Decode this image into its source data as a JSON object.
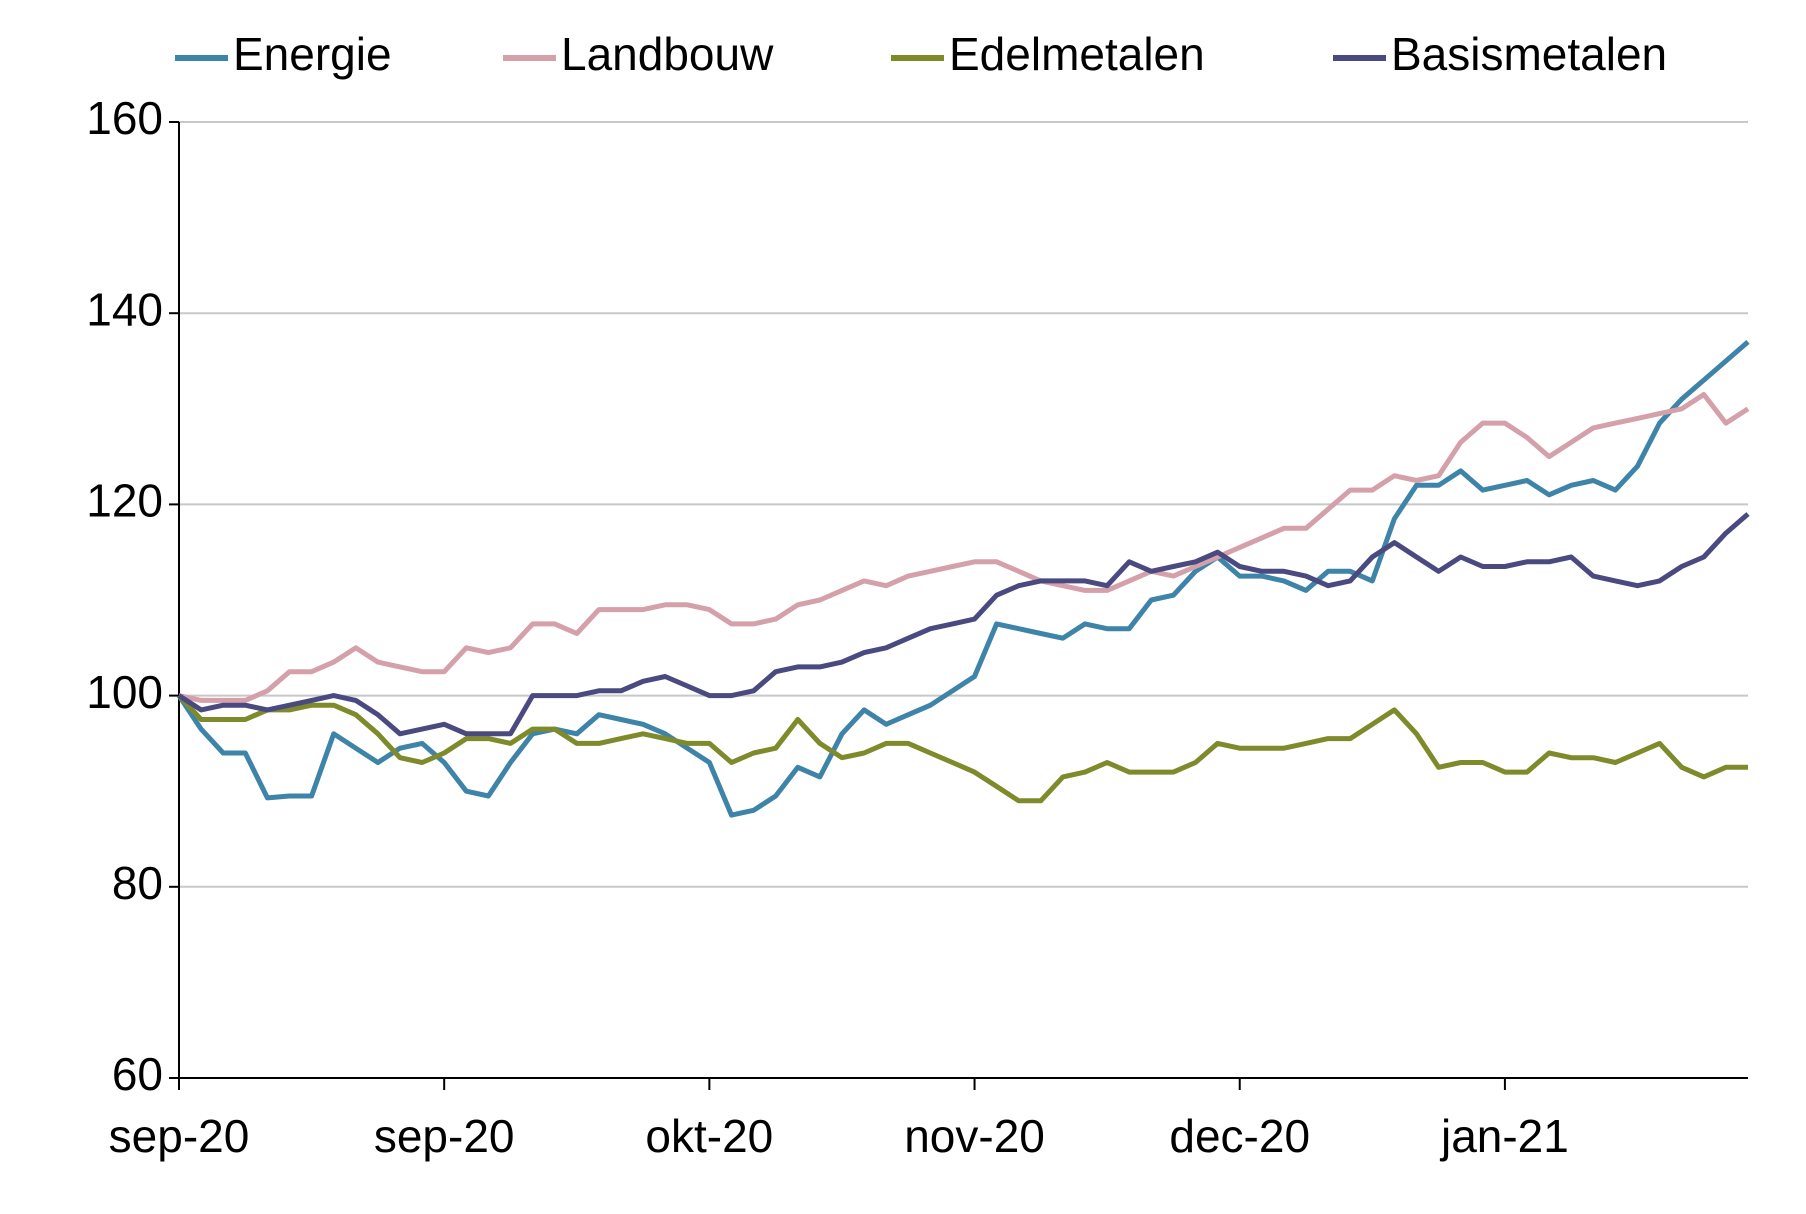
{
  "chart_data": {
    "type": "line",
    "categories": [
      "sep-20",
      null,
      null,
      null,
      null,
      null,
      null,
      null,
      null,
      null,
      null,
      null,
      "sep-20",
      null,
      null,
      null,
      null,
      null,
      null,
      null,
      null,
      null,
      null,
      null,
      "okt-20",
      null,
      null,
      null,
      null,
      null,
      null,
      null,
      null,
      null,
      null,
      null,
      "nov-20",
      null,
      null,
      null,
      null,
      null,
      null,
      null,
      null,
      null,
      null,
      null,
      "dec-20",
      null,
      null,
      null,
      null,
      null,
      null,
      null,
      null,
      null,
      null,
      null,
      "jan-21",
      null,
      null,
      null,
      null,
      null,
      null,
      null,
      null,
      null,
      null,
      null
    ],
    "series": [
      {
        "name": "Energie",
        "color": "#3d84a8",
        "values": [
          100,
          96.5,
          94,
          94,
          89.3,
          89.5,
          89.5,
          96,
          94.5,
          93,
          94.5,
          95,
          93,
          90,
          89.5,
          93,
          96,
          96.5,
          96,
          98,
          97.5,
          97,
          96,
          94.5,
          93,
          87.5,
          88,
          89.5,
          92.5,
          91.5,
          96,
          98.5,
          97,
          98,
          99,
          100.5,
          102,
          107.5,
          107,
          106.5,
          106,
          107.5,
          107,
          107,
          110,
          110.5,
          113,
          114.5,
          112.5,
          112.5,
          112,
          111,
          113,
          113,
          112,
          118.5,
          122,
          122,
          123.5,
          121.5,
          122,
          122.5,
          121,
          122,
          122.5,
          121.5,
          124,
          128.5,
          131,
          133,
          135,
          137
        ]
      },
      {
        "name": "Landbouw",
        "color": "#d4a0aa",
        "values": [
          100,
          99.5,
          99.5,
          99.5,
          100.5,
          102.5,
          102.5,
          103.5,
          105,
          103.5,
          103,
          102.5,
          102.5,
          105,
          104.5,
          105,
          107.5,
          107.5,
          106.5,
          109,
          109,
          109,
          109.5,
          109.5,
          109,
          107.5,
          107.5,
          108,
          109.5,
          110,
          111,
          112,
          111.5,
          112.5,
          113,
          113.5,
          114,
          114,
          113,
          112,
          111.5,
          111,
          111,
          112,
          113,
          112.5,
          113.5,
          114.5,
          115.5,
          116.5,
          117.5,
          117.5,
          119.5,
          121.5,
          121.5,
          123,
          122.5,
          123,
          126.5,
          128.5,
          128.5,
          127,
          125,
          126.5,
          128,
          128.5,
          129,
          129.5,
          130,
          131.5,
          128.5,
          130
        ]
      },
      {
        "name": "Edelmetalen",
        "color": "#7f8a2a",
        "values": [
          100,
          97.5,
          97.5,
          97.5,
          98.5,
          98.5,
          99,
          99,
          98,
          96,
          93.5,
          93,
          94,
          95.5,
          95.5,
          95,
          96.5,
          96.5,
          95,
          95,
          95.5,
          96,
          95.5,
          95,
          95,
          93,
          94,
          94.5,
          97.5,
          95,
          93.5,
          94,
          95,
          95,
          94,
          93,
          92,
          90.5,
          89,
          89,
          91.5,
          92,
          93,
          92,
          92,
          92,
          93,
          95,
          94.5,
          94.5,
          94.5,
          95,
          95.5,
          95.5,
          97,
          98.5,
          96,
          92.5,
          93,
          93,
          92,
          92,
          94,
          93.5,
          93.5,
          93,
          94,
          95,
          92.5,
          91.5,
          92.5,
          92.5
        ]
      },
      {
        "name": "Basismetalen",
        "color": "#4a4a80",
        "values": [
          100,
          98.5,
          99,
          99,
          98.5,
          99,
          99.5,
          100,
          99.5,
          98,
          96,
          96.5,
          97,
          96,
          96,
          96,
          100,
          100,
          100,
          100.5,
          100.5,
          101.5,
          102,
          101,
          100,
          100,
          100.5,
          102.5,
          103,
          103,
          103.5,
          104.5,
          105,
          106,
          107,
          107.5,
          108,
          110.5,
          111.5,
          112,
          112,
          112,
          111.5,
          114,
          113,
          113.5,
          114,
          115,
          113.5,
          113,
          113,
          112.5,
          111.5,
          112,
          114.5,
          116,
          114.5,
          113,
          114.5,
          113.5,
          113.5,
          114,
          114,
          114.5,
          112.5,
          112,
          111.5,
          112,
          113.5,
          114.5,
          117,
          119
        ]
      }
    ],
    "ylim": [
      60,
      160
    ],
    "yticks": [
      60,
      80,
      100,
      120,
      140,
      160
    ],
    "grid": true,
    "legend": "top"
  }
}
